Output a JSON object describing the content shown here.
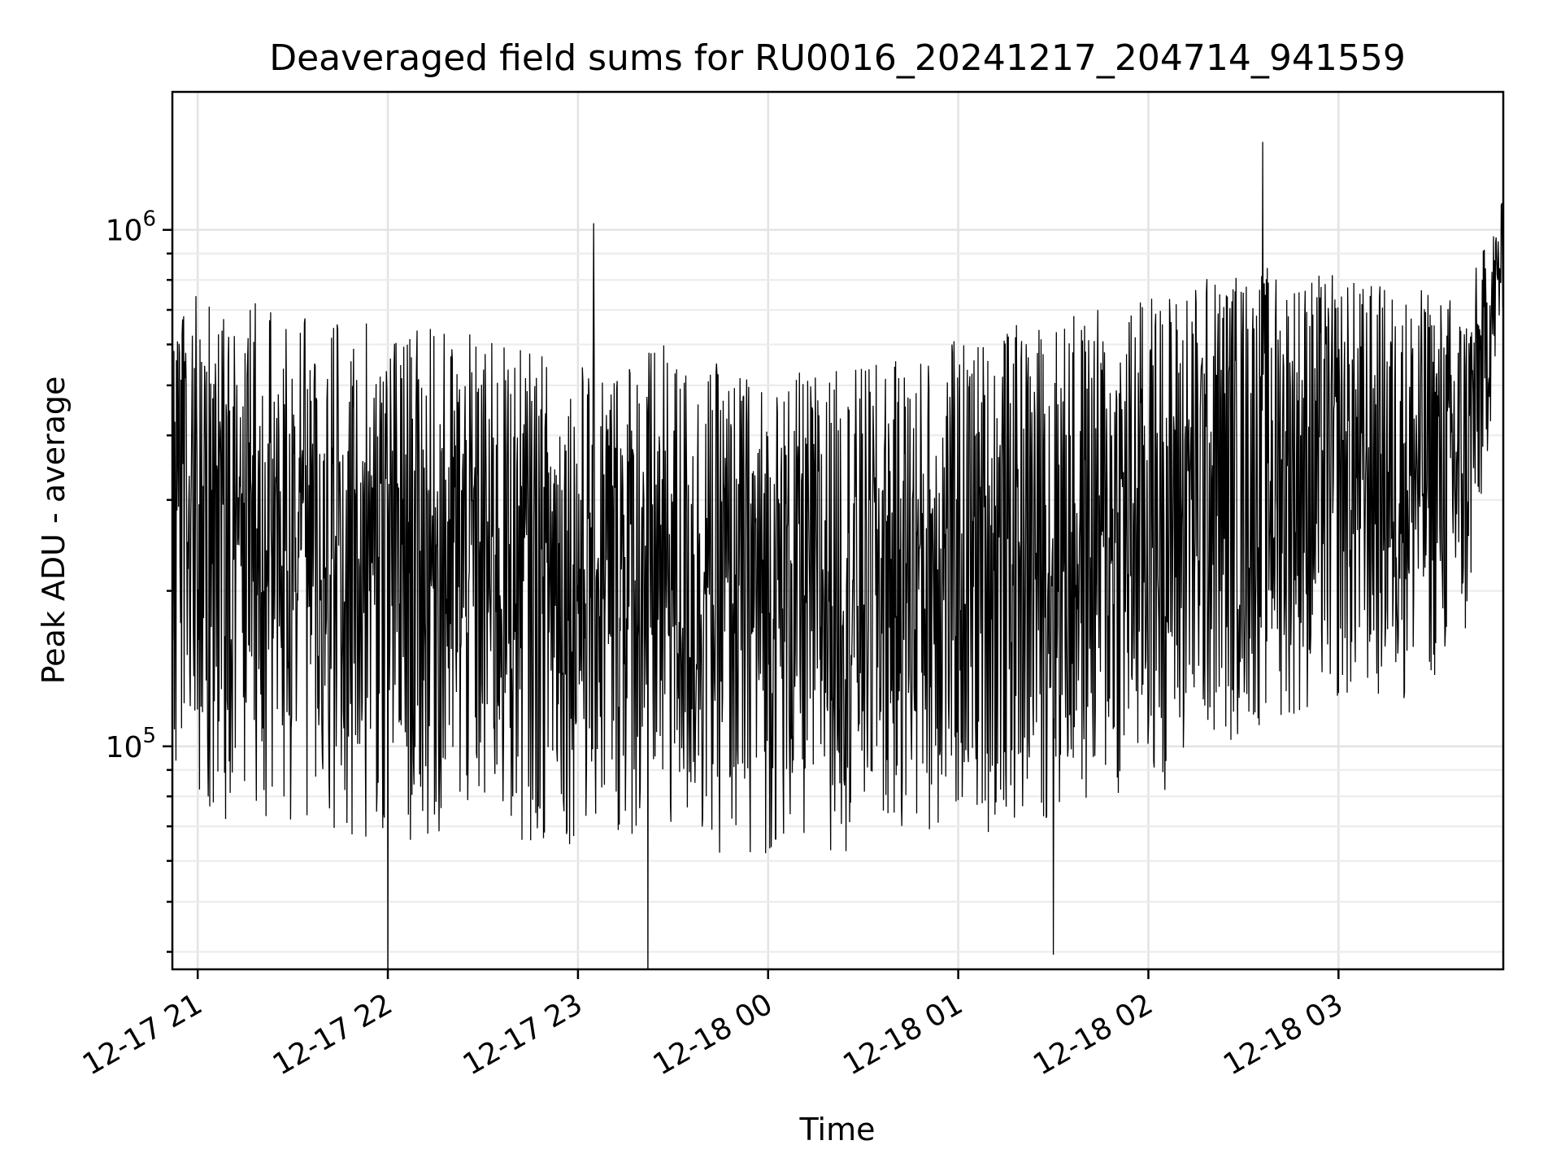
{
  "chart_data": {
    "type": "line",
    "title": "Deaveraged field sums for RU0016_20241217_204714_941559",
    "xlabel": "Time",
    "ylabel": "Peak ADU - average",
    "yscale": "log",
    "xlim": [
      "2024-12-17 20:52",
      "2024-12-18 03:52"
    ],
    "ylim": [
      37000,
      1850000
    ],
    "grid": true,
    "x_ticks": [
      {
        "value": "2024-12-17 21:00",
        "label": "12-17 21"
      },
      {
        "value": "2024-12-17 22:00",
        "label": "12-17 22"
      },
      {
        "value": "2024-12-17 23:00",
        "label": "12-17 23"
      },
      {
        "value": "2024-12-18 00:00",
        "label": "12-18 00"
      },
      {
        "value": "2024-12-18 01:00",
        "label": "12-18 01"
      },
      {
        "value": "2024-12-18 02:00",
        "label": "12-18 02"
      },
      {
        "value": "2024-12-18 03:00",
        "label": "12-18 03"
      }
    ],
    "y_ticks": [
      {
        "value": 100000,
        "base": "10",
        "exp": "5"
      },
      {
        "value": 1000000,
        "base": "10",
        "exp": "6"
      }
    ],
    "series": [
      {
        "color": "#000000",
        "x_start": "2024-12-17 20:52",
        "x_end": "2024-12-18 03:52",
        "y_envelope": [
          {
            "x": "2024-12-17 20:52",
            "low": 75000,
            "high": 760000
          },
          {
            "x": "2024-12-17 21:20",
            "low": 70000,
            "high": 720000
          },
          {
            "x": "2024-12-17 21:40",
            "low": 68000,
            "high": 680000
          },
          {
            "x": "2024-12-17 22:00",
            "low": 62000,
            "high": 650000
          },
          {
            "x": "2024-12-17 22:20",
            "low": 64000,
            "high": 640000
          },
          {
            "x": "2024-12-17 22:40",
            "low": 64000,
            "high": 600000
          },
          {
            "x": "2024-12-17 23:00",
            "low": 64000,
            "high": 560000
          },
          {
            "x": "2024-12-17 23:20",
            "low": 63000,
            "high": 620000
          },
          {
            "x": "2024-12-17 23:40",
            "low": 60000,
            "high": 560000
          },
          {
            "x": "2024-12-18 00:00",
            "low": 60000,
            "high": 520000
          },
          {
            "x": "2024-12-18 00:20",
            "low": 62000,
            "high": 540000
          },
          {
            "x": "2024-12-18 00:40",
            "low": 65000,
            "high": 560000
          },
          {
            "x": "2024-12-18 01:00",
            "low": 66000,
            "high": 620000
          },
          {
            "x": "2024-12-18 01:20",
            "low": 68000,
            "high": 660000
          },
          {
            "x": "2024-12-18 01:40",
            "low": 72000,
            "high": 700000
          },
          {
            "x": "2024-12-18 02:00",
            "low": 78000,
            "high": 760000
          },
          {
            "x": "2024-12-18 02:20",
            "low": 95000,
            "high": 840000
          },
          {
            "x": "2024-12-18 02:40",
            "low": 110000,
            "high": 860000
          },
          {
            "x": "2024-12-18 03:00",
            "low": 115000,
            "high": 820000
          },
          {
            "x": "2024-12-18 03:20",
            "low": 120000,
            "high": 780000
          },
          {
            "x": "2024-12-18 03:40",
            "low": 140000,
            "high": 760000
          },
          {
            "x": "2024-12-18 03:52",
            "low": 700000,
            "high": 1150000
          }
        ],
        "notable_points": [
          {
            "x": "2024-12-17 22:00",
            "y": 31000
          },
          {
            "x": "2024-12-17 23:05",
            "y": 1030000
          },
          {
            "x": "2024-12-17 23:22",
            "y": 30500
          },
          {
            "x": "2024-12-18 01:30",
            "y": 39500
          },
          {
            "x": "2024-12-18 02:36",
            "y": 1480000
          },
          {
            "x": "2024-12-18 03:52",
            "y": 1250000
          }
        ]
      }
    ]
  }
}
